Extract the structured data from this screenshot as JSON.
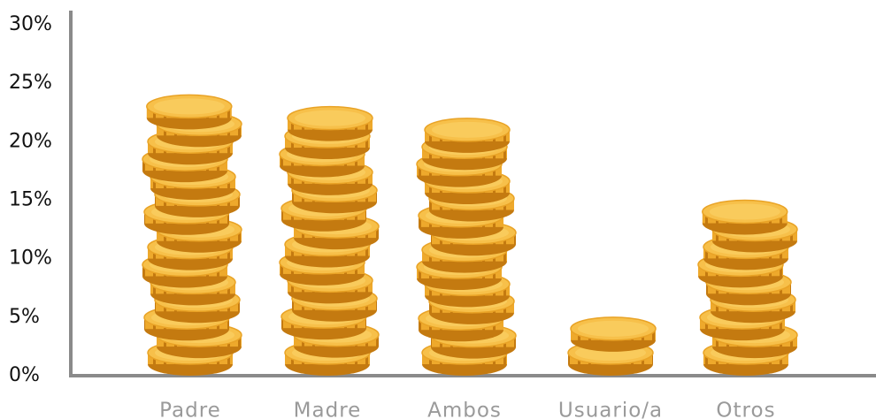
{
  "chart_data": {
    "type": "bar",
    "categories": [
      "Padre",
      "Madre",
      "Ambos",
      "Usuario/a",
      "Otros"
    ],
    "values": [
      24,
      23,
      22,
      5,
      15
    ],
    "color": "#f7c04a",
    "ylim": [
      0,
      30
    ],
    "yticks": [
      {
        "value": 0,
        "label": "0%"
      },
      {
        "value": 5,
        "label": "5%"
      },
      {
        "value": 10,
        "label": "10%"
      },
      {
        "value": 15,
        "label": "15%"
      },
      {
        "value": 20,
        "label": "20%"
      },
      {
        "value": 25,
        "label": "25%"
      },
      {
        "value": 30,
        "label": "30%"
      }
    ],
    "grid": false
  }
}
